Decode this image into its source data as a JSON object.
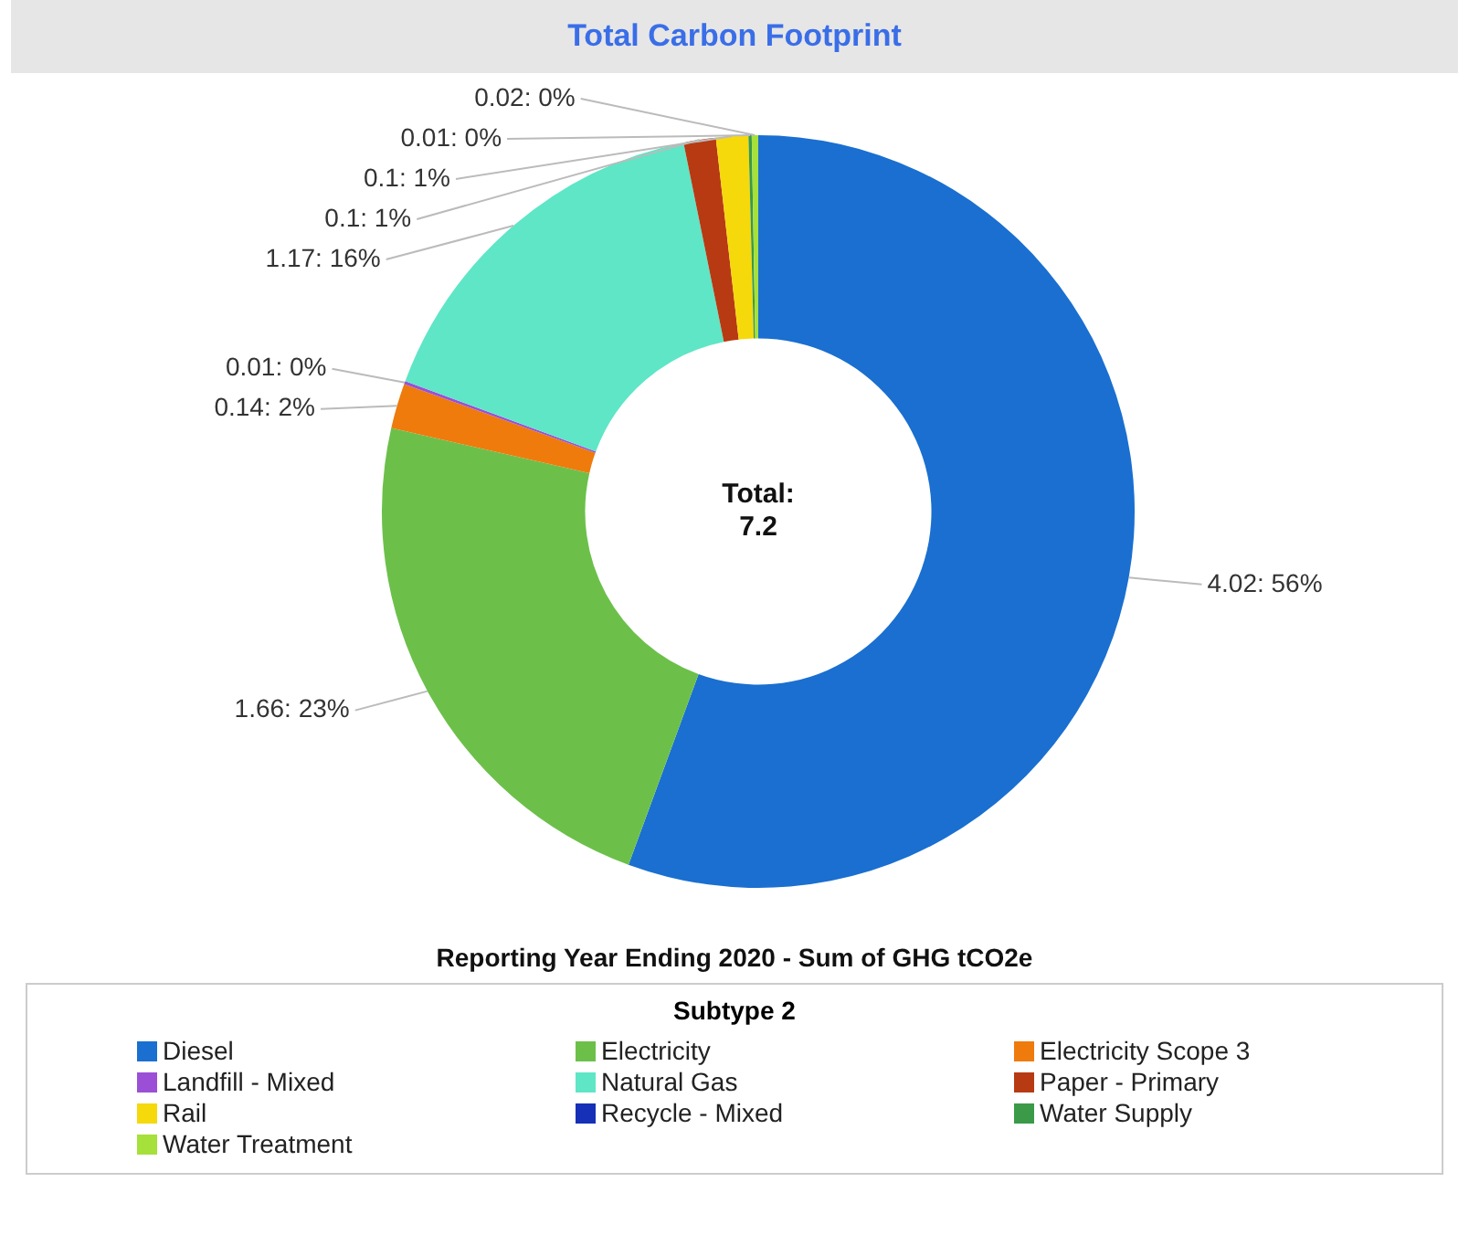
{
  "chart_data": {
    "type": "donut",
    "title": "Total Carbon Footprint",
    "subtitle": "Reporting Year Ending 2020 - Sum of GHG tCO2e",
    "legend_title": "Subtype 2",
    "legend": "bottom",
    "categories": [
      "Diesel",
      "Electricity",
      "Electricity Scope 3",
      "Landfill - Mixed",
      "Natural Gas",
      "Paper - Primary",
      "Rail",
      "Recycle - Mixed",
      "Water Supply",
      "Water Treatment"
    ],
    "values": [
      4.02,
      1.66,
      0.14,
      0.01,
      1.17,
      0.1,
      0.1,
      0,
      0.01,
      0.02
    ],
    "value_labels": [
      "4.02: 56%",
      "1.66: 23%",
      "0.14: 2%",
      "0.01: 0%",
      "1.17: 16%",
      "0.1: 1%",
      "0.1: 1%",
      null,
      "0.01: 0%",
      "0.02: 0%"
    ],
    "colors": [
      "#1a6fd0",
      "#6cc04a",
      "#ee7b0c",
      "#9b4fd6",
      "#5ee6c6",
      "#b83a12",
      "#f5d90a",
      "#1630b8",
      "#3a9a48",
      "#a6e03a"
    ],
    "annotations": [
      "Total:\n7.2"
    ]
  }
}
